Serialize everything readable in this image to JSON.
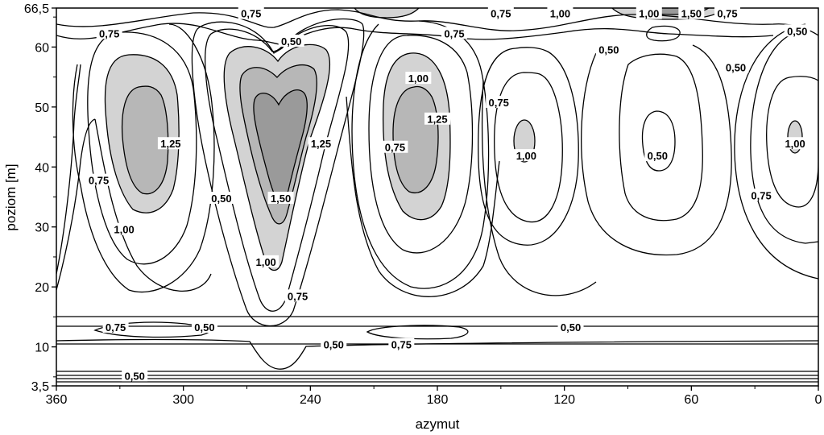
{
  "chart_data": {
    "type": "contour",
    "xlabel": "azymut",
    "ylabel": "poziom [m]",
    "xlim": [
      360,
      0
    ],
    "ylim": [
      3.5,
      66.5
    ],
    "x_ticks": [
      "360",
      "300",
      "240",
      "180",
      "120",
      "60",
      "0"
    ],
    "x_tick_values": [
      360,
      300,
      240,
      180,
      120,
      60,
      0
    ],
    "y_ticks": [
      "3,5",
      "10",
      "20",
      "30",
      "40",
      "50",
      "60",
      "66,5"
    ],
    "y_tick_values": [
      3.5,
      10,
      20,
      30,
      40,
      50,
      60,
      66.5
    ],
    "contour_levels": [
      0.5,
      0.75,
      1.0,
      1.25,
      1.5
    ],
    "shading": {
      "1.00": "#d3d3d3",
      "1.25": "#b7b7b7",
      "1.50": "#9a9a9a"
    },
    "level_labels": [
      {
        "text": "0,75",
        "x": 268,
        "y": 65.6
      },
      {
        "text": "0,75",
        "x": 150,
        "y": 65.6
      },
      {
        "text": "1,00",
        "x": 122,
        "y": 65.6
      },
      {
        "text": "1,00",
        "x": 80,
        "y": 65.6
      },
      {
        "text": "1,50",
        "x": 60,
        "y": 65.6
      },
      {
        "text": "0,75",
        "x": 43,
        "y": 65.6
      },
      {
        "text": "0,75",
        "x": 335,
        "y": 62.3
      },
      {
        "text": "0,50",
        "x": 249,
        "y": 61.0
      },
      {
        "text": "0,75",
        "x": 172,
        "y": 62.3
      },
      {
        "text": "0,50",
        "x": 10,
        "y": 62.7
      },
      {
        "text": "0,50",
        "x": 99,
        "y": 59.6
      },
      {
        "text": "0,50",
        "x": 39,
        "y": 56.6
      },
      {
        "text": "1,00",
        "x": 189,
        "y": 54.8
      },
      {
        "text": "0,75",
        "x": 151,
        "y": 50.8
      },
      {
        "text": "1,25",
        "x": 180,
        "y": 48.0
      },
      {
        "text": "1,25",
        "x": 306,
        "y": 43.9
      },
      {
        "text": "1,25",
        "x": 235,
        "y": 43.9
      },
      {
        "text": "0,75",
        "x": 200,
        "y": 43.3
      },
      {
        "text": "1,00",
        "x": 138,
        "y": 41.9
      },
      {
        "text": "0,50",
        "x": 76,
        "y": 41.9
      },
      {
        "text": "1,00",
        "x": 11,
        "y": 43.9
      },
      {
        "text": "0,75",
        "x": 340,
        "y": 37.8
      },
      {
        "text": "0,50",
        "x": 282,
        "y": 34.8
      },
      {
        "text": "1,50",
        "x": 254,
        "y": 34.8
      },
      {
        "text": "0,75",
        "x": 27,
        "y": 35.3
      },
      {
        "text": "1,00",
        "x": 328,
        "y": 29.6
      },
      {
        "text": "1,00",
        "x": 261,
        "y": 24.2
      },
      {
        "text": "0,75",
        "x": 246,
        "y": 18.5
      },
      {
        "text": "0,75",
        "x": 332,
        "y": 13.3
      },
      {
        "text": "0,50",
        "x": 290,
        "y": 13.3
      },
      {
        "text": "0,50",
        "x": 117,
        "y": 13.3
      },
      {
        "text": "0,50",
        "x": 229,
        "y": 10.4
      },
      {
        "text": "0,75",
        "x": 197,
        "y": 10.4
      },
      {
        "text": "0,50",
        "x": 323,
        "y": 5.2
      }
    ]
  }
}
